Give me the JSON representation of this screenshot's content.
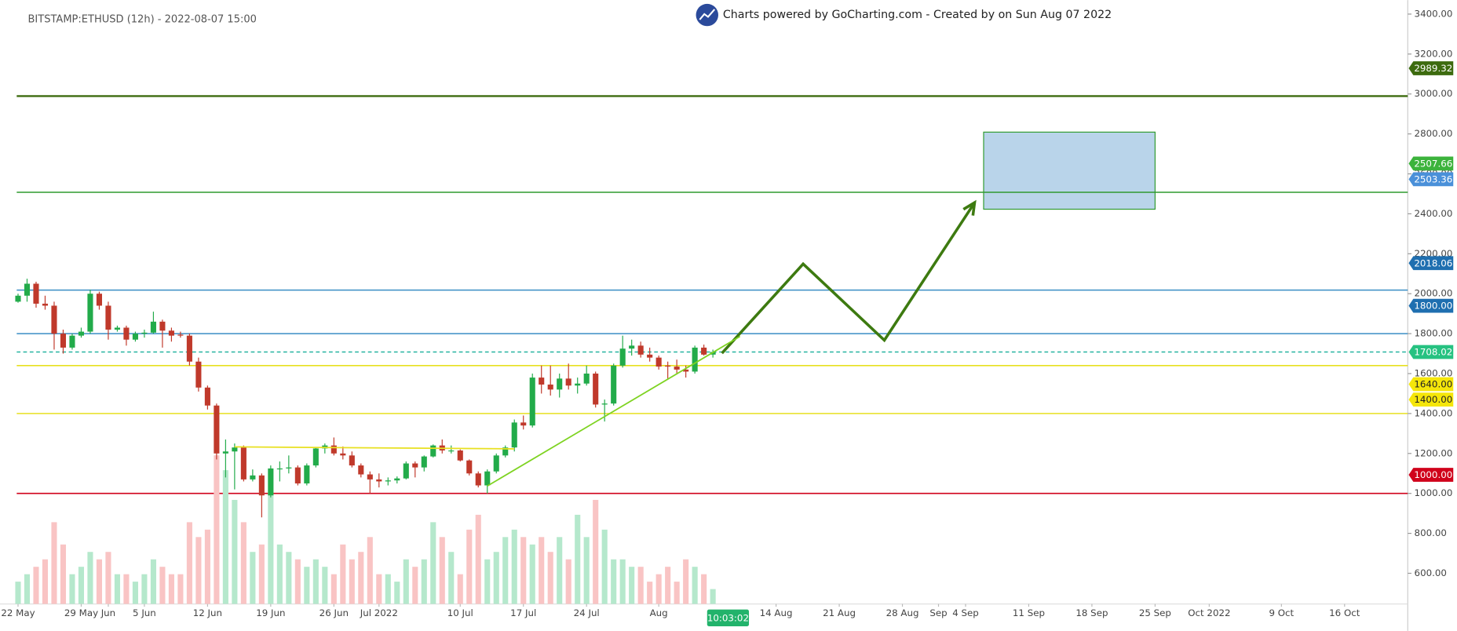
{
  "header": {
    "title": "BITSTAMP:ETHUSD (12h) - 2022-08-07 15:00",
    "powered": "Charts powered by GoCharting.com - Created by  on Sun Aug 07 2022",
    "countdown": "10:03:02"
  },
  "chart_data": {
    "type": "candlestick",
    "x": [
      "2022-05-22",
      "2022-05-23",
      "2022-05-24",
      "2022-05-25",
      "2022-05-26",
      "2022-05-27",
      "2022-05-28",
      "2022-05-29",
      "2022-05-30",
      "2022-05-31",
      "2022-06-01",
      "2022-06-02",
      "2022-06-03",
      "2022-06-04",
      "2022-06-05",
      "2022-06-06",
      "2022-06-07",
      "2022-06-08",
      "2022-06-09",
      "2022-06-10",
      "2022-06-11",
      "2022-06-12",
      "2022-06-13",
      "2022-06-14",
      "2022-06-15",
      "2022-06-16",
      "2022-06-17",
      "2022-06-18",
      "2022-06-19",
      "2022-06-20",
      "2022-06-21",
      "2022-06-22",
      "2022-06-23",
      "2022-06-24",
      "2022-06-25",
      "2022-06-26",
      "2022-06-27",
      "2022-06-28",
      "2022-06-29",
      "2022-06-30",
      "2022-07-01",
      "2022-07-02",
      "2022-07-03",
      "2022-07-04",
      "2022-07-05",
      "2022-07-06",
      "2022-07-07",
      "2022-07-08",
      "2022-07-09",
      "2022-07-10",
      "2022-07-11",
      "2022-07-12",
      "2022-07-13",
      "2022-07-14",
      "2022-07-15",
      "2022-07-16",
      "2022-07-17",
      "2022-07-18",
      "2022-07-19",
      "2022-07-20",
      "2022-07-21",
      "2022-07-22",
      "2022-07-23",
      "2022-07-24",
      "2022-07-25",
      "2022-07-26",
      "2022-07-27",
      "2022-07-28",
      "2022-07-29",
      "2022-07-30",
      "2022-07-31",
      "2022-08-01",
      "2022-08-02",
      "2022-08-03",
      "2022-08-04",
      "2022-08-05",
      "2022-08-06",
      "2022-08-07"
    ],
    "open": [
      1960,
      1990,
      2050,
      1950,
      1940,
      1800,
      1730,
      1790,
      1810,
      2000,
      1940,
      1820,
      1830,
      1770,
      1800,
      1805,
      1860,
      1815,
      1795,
      1790,
      1660,
      1530,
      1440,
      1200,
      1210,
      1230,
      1070,
      1090,
      990,
      1125,
      1125,
      1130,
      1050,
      1140,
      1225,
      1240,
      1200,
      1190,
      1140,
      1095,
      1070,
      1060,
      1065,
      1075,
      1150,
      1130,
      1185,
      1240,
      1215,
      1215,
      1165,
      1100,
      1040,
      1110,
      1190,
      1230,
      1355,
      1340,
      1580,
      1545,
      1520,
      1575,
      1540,
      1550,
      1600,
      1445,
      1450,
      1640,
      1725,
      1740,
      1695,
      1680,
      1640,
      1635,
      1620,
      1610,
      1730,
      1695
    ],
    "high": [
      2000,
      2075,
      2060,
      1990,
      1960,
      1820,
      1800,
      1830,
      2020,
      2010,
      1960,
      1840,
      1840,
      1810,
      1820,
      1910,
      1870,
      1830,
      1810,
      1800,
      1680,
      1540,
      1450,
      1270,
      1250,
      1240,
      1120,
      1100,
      1140,
      1160,
      1190,
      1140,
      1150,
      1230,
      1250,
      1280,
      1235,
      1210,
      1150,
      1110,
      1100,
      1080,
      1085,
      1160,
      1160,
      1190,
      1245,
      1270,
      1240,
      1220,
      1170,
      1110,
      1120,
      1200,
      1240,
      1370,
      1390,
      1600,
      1640,
      1640,
      1600,
      1650,
      1580,
      1640,
      1610,
      1470,
      1650,
      1790,
      1770,
      1760,
      1730,
      1690,
      1660,
      1670,
      1640,
      1740,
      1745,
      1720
    ],
    "low": [
      1955,
      1960,
      1930,
      1920,
      1720,
      1700,
      1720,
      1780,
      1800,
      1920,
      1770,
      1810,
      1740,
      1760,
      1780,
      1800,
      1730,
      1760,
      1780,
      1640,
      1510,
      1420,
      1170,
      1080,
      1020,
      1060,
      1060,
      880,
      980,
      1060,
      1100,
      1040,
      1040,
      1130,
      1200,
      1190,
      1170,
      1130,
      1080,
      1000,
      1030,
      1040,
      1050,
      1070,
      1080,
      1110,
      1180,
      1200,
      1200,
      1160,
      1090,
      1030,
      1000,
      1100,
      1180,
      1210,
      1320,
      1330,
      1500,
      1490,
      1480,
      1520,
      1500,
      1540,
      1430,
      1360,
      1440,
      1630,
      1690,
      1680,
      1660,
      1620,
      1570,
      1600,
      1580,
      1600,
      1690,
      1680
    ],
    "close": [
      1990,
      2050,
      1950,
      1940,
      1800,
      1730,
      1790,
      1810,
      2000,
      1940,
      1820,
      1830,
      1770,
      1800,
      1805,
      1860,
      1815,
      1790,
      1790,
      1660,
      1530,
      1440,
      1200,
      1210,
      1230,
      1070,
      1090,
      990,
      1125,
      1125,
      1130,
      1050,
      1140,
      1225,
      1240,
      1200,
      1190,
      1140,
      1095,
      1070,
      1060,
      1065,
      1075,
      1150,
      1130,
      1185,
      1240,
      1215,
      1215,
      1165,
      1100,
      1040,
      1110,
      1190,
      1230,
      1355,
      1340,
      1580,
      1545,
      1520,
      1575,
      1540,
      1550,
      1600,
      1445,
      1450,
      1640,
      1725,
      1740,
      1695,
      1680,
      1635,
      1635,
      1620,
      1610,
      1730,
      1695,
      1708
    ],
    "volume": [
      15,
      20,
      25,
      30,
      55,
      40,
      20,
      25,
      35,
      30,
      35,
      20,
      20,
      15,
      20,
      30,
      25,
      20,
      20,
      55,
      45,
      50,
      100,
      90,
      70,
      55,
      35,
      40,
      75,
      40,
      35,
      30,
      25,
      30,
      25,
      20,
      40,
      30,
      35,
      45,
      20,
      20,
      15,
      30,
      25,
      30,
      55,
      45,
      35,
      20,
      50,
      60,
      30,
      35,
      45,
      50,
      45,
      40,
      45,
      35,
      45,
      30,
      60,
      45,
      70,
      50,
      30,
      30,
      25,
      25,
      15,
      20,
      25,
      15,
      30,
      25,
      20,
      10
    ],
    "up_color": "#22ab4a",
    "down_color": "#c0392b",
    "up_volume_color": "#b5e8cc",
    "down_volume_color": "#f9c4c4",
    "ylim": [
      446.5,
      3470
    ],
    "yticks": [
      {
        "value": 600,
        "label": "600.00"
      },
      {
        "value": 800,
        "label": "800.00"
      },
      {
        "value": 1000,
        "label": "1000.00"
      },
      {
        "value": 1200,
        "label": "1200.00"
      },
      {
        "value": 1400,
        "label": "1400.00"
      },
      {
        "value": 1600,
        "label": "1600.00"
      },
      {
        "value": 1800,
        "label": "1800.00"
      },
      {
        "value": 2000,
        "label": "2000.00"
      },
      {
        "value": 2200,
        "label": "2200.00"
      },
      {
        "value": 2400,
        "label": "2400.00"
      },
      {
        "value": 2600,
        "label": "2600.00"
      },
      {
        "value": 2800,
        "label": "2800.00"
      },
      {
        "value": 3000,
        "label": "3000.00"
      },
      {
        "value": 3200,
        "label": "3200.00"
      },
      {
        "value": 3400,
        "label": "3400.00"
      }
    ],
    "xlim": [
      "2022-05-20",
      "2022-10-23"
    ],
    "xticks": [
      {
        "value": "2022-05-22",
        "label": "22 May"
      },
      {
        "value": "2022-05-29",
        "label": "29 May"
      },
      {
        "value": "2022-06-01",
        "label": "Jun"
      },
      {
        "value": "2022-06-05",
        "label": "5 Jun"
      },
      {
        "value": "2022-06-12",
        "label": "12 Jun"
      },
      {
        "value": "2022-06-19",
        "label": "19 Jun"
      },
      {
        "value": "2022-06-26",
        "label": "26 Jun"
      },
      {
        "value": "2022-07-01",
        "label": "Jul 2022"
      },
      {
        "value": "2022-07-10",
        "label": "10 Jul"
      },
      {
        "value": "2022-07-17",
        "label": "17 Jul"
      },
      {
        "value": "2022-07-24",
        "label": "24 Jul"
      },
      {
        "value": "2022-08-01",
        "label": "Aug"
      },
      {
        "value": "2022-08-14",
        "label": "14 Aug"
      },
      {
        "value": "2022-08-21",
        "label": "21 Aug"
      },
      {
        "value": "2022-08-28",
        "label": "28 Aug"
      },
      {
        "value": "2022-09-01",
        "label": "Sep"
      },
      {
        "value": "2022-09-04",
        "label": "4 Sep"
      },
      {
        "value": "2022-09-11",
        "label": "11 Sep"
      },
      {
        "value": "2022-09-18",
        "label": "18 Sep"
      },
      {
        "value": "2022-09-25",
        "label": "25 Sep"
      },
      {
        "value": "2022-10-01",
        "label": "Oct 2022"
      },
      {
        "value": "2022-10-09",
        "label": "9 Oct"
      },
      {
        "value": "2022-10-16",
        "label": "16 Oct"
      }
    ],
    "price_tags": [
      {
        "value": 2989.32,
        "label": "2989.32",
        "color": "#3d6b0f",
        "text_color": "#ffffff",
        "line": "solid",
        "line_color": "#3d6b0f"
      },
      {
        "value": 2507.66,
        "label": "2507.66",
        "color": "#3cb33c",
        "text_color": "#ffffff",
        "line": "solid",
        "line_color": "#2f9a2f"
      },
      {
        "value": 2503.36,
        "label": "2503.36",
        "color": "#4a90d9",
        "text_color": "#ffffff",
        "line": "none",
        "line_color": "#4a90d9"
      },
      {
        "value": 2018.06,
        "label": "2018.06",
        "color": "#1f6fb0",
        "text_color": "#ffffff",
        "line": "solid",
        "line_color": "#3a8ec4"
      },
      {
        "value": 1800,
        "label": "1800.00",
        "color": "#1f6fb0",
        "text_color": "#ffffff",
        "line": "solid",
        "line_color": "#3a8ec4"
      },
      {
        "value": 1708.02,
        "label": "1708.02",
        "color": "#26c281",
        "text_color": "#ffffff",
        "line": "dashed",
        "line_color": "#26b3a0"
      },
      {
        "value": 1640,
        "label": "1640.00",
        "color": "#f5e60a",
        "text_color": "#222222",
        "line": "solid",
        "line_color": "#e8e020"
      },
      {
        "value": 1400,
        "label": "1400.00",
        "color": "#f5e60a",
        "text_color": "#222222",
        "line": "solid",
        "line_color": "#e8e020"
      },
      {
        "value": 1000,
        "label": "1000.00",
        "color": "#d0021b",
        "text_color": "#ffffff",
        "line": "solid",
        "line_color": "#d0021b"
      }
    ],
    "zones": [
      {
        "xlim": [
          "2022-09-06",
          "2022-09-25"
        ],
        "ylim": [
          2423,
          2809
        ],
        "color": "#b9d4ea",
        "border": "#2f9a2f"
      }
    ],
    "drawings": [
      {
        "x": [
          "2022-08-08",
          "2022-08-17",
          "2022-08-26",
          "2022-09-05"
        ],
        "y": [
          1702,
          2149,
          1767,
          2456
        ],
        "color": "#3d7a10",
        "arrow": true
      },
      {
        "x": [
          "2022-07-13",
          "2022-08-10"
        ],
        "y": [
          1037,
          1786
        ],
        "color": "#7ed321",
        "arrow": false
      },
      {
        "x": [
          "2022-06-15",
          "2022-07-16"
        ],
        "y": [
          1233,
          1223
        ],
        "color": "#e8e020",
        "arrow": false
      }
    ]
  }
}
